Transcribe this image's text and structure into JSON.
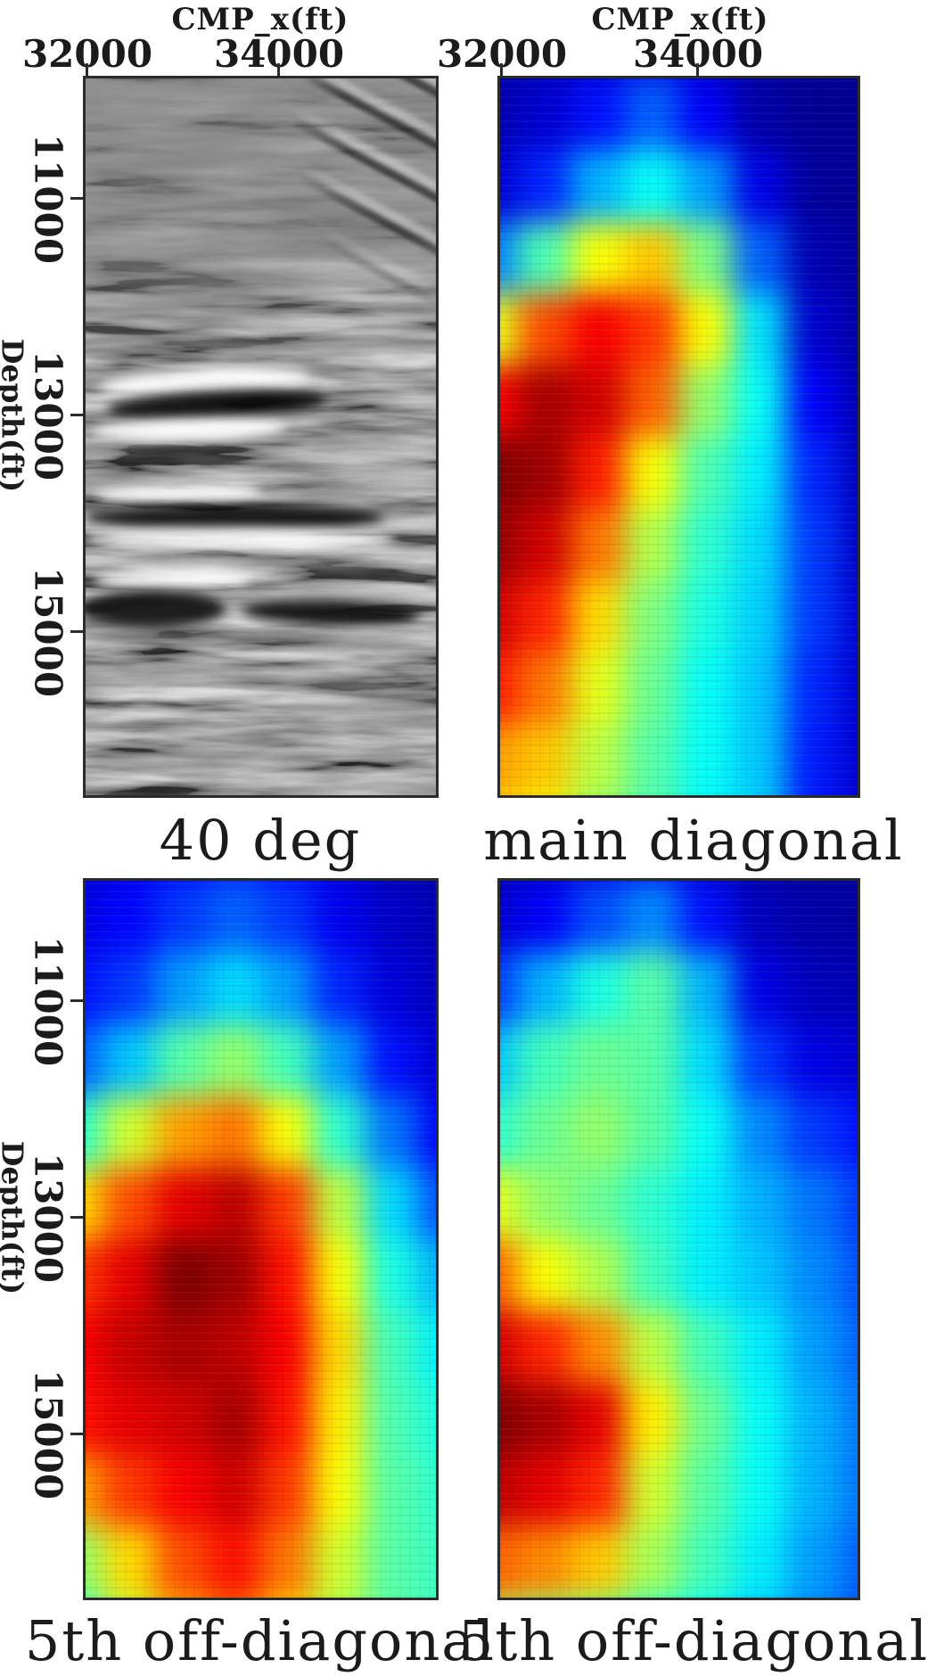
{
  "figure": {
    "background": "#ffffff",
    "text_color": "#1b1b1b",
    "axis_color": "#2b2b2b",
    "x_axis": {
      "title": "CMP_x(ft)",
      "ticks": [
        "32000",
        "34000"
      ]
    },
    "y_axis": {
      "title": "Depth(ft)",
      "ticks": [
        "11000",
        "13000",
        "15000"
      ]
    },
    "captions": {
      "top_left": "40 deg",
      "top_right": "main diagonal",
      "bottom_left": "5th off-diagonal",
      "bottom_right": "5th off-diagonal"
    }
  },
  "chart_data": [
    {
      "id": "deg40",
      "type": "heatmap",
      "subtype": "seismic-image",
      "colormap": "gray",
      "caption": "40 deg",
      "xlabel": "CMP_x(ft)",
      "ylabel": "Depth(ft)",
      "x_ticks": [
        32000,
        34000
      ],
      "y_ticks": [
        11000,
        13000,
        15000
      ],
      "description": "Grayscale migrated seismic depth section for the 40 degree angle: faint subhorizontal wavy reflectors in the upper third, strong dipping black/white events near 13000 ft (left-center), strong continuous black/white banding around 14500-15500 ft with heavy black amplitudes at the lower left, and steep dipping noise streaks in the upper-right corner."
    },
    {
      "id": "main_diagonal",
      "type": "heatmap",
      "colormap": "jet",
      "caption": "main diagonal",
      "xlabel": "CMP_x(ft)",
      "ylabel": "Depth(ft)",
      "x_ticks": [
        32000,
        34000
      ],
      "y_ticks": [
        11000,
        13000,
        15000
      ],
      "value_range": [
        0,
        1
      ],
      "grid": [
        [
          0.04,
          0.05,
          0.07,
          0.09,
          0.06,
          0.03,
          0.02,
          0.02
        ],
        [
          0.05,
          0.08,
          0.14,
          0.22,
          0.12,
          0.04,
          0.02,
          0.02
        ],
        [
          0.08,
          0.16,
          0.3,
          0.38,
          0.28,
          0.1,
          0.03,
          0.02
        ],
        [
          0.25,
          0.45,
          0.62,
          0.68,
          0.5,
          0.22,
          0.05,
          0.03
        ],
        [
          0.6,
          0.8,
          0.88,
          0.82,
          0.62,
          0.35,
          0.08,
          0.04
        ],
        [
          0.88,
          0.96,
          0.92,
          0.78,
          0.52,
          0.38,
          0.12,
          0.05
        ],
        [
          1.0,
          0.97,
          0.85,
          0.62,
          0.45,
          0.36,
          0.16,
          0.06
        ],
        [
          0.98,
          0.92,
          0.76,
          0.55,
          0.42,
          0.34,
          0.18,
          0.07
        ],
        [
          0.92,
          0.84,
          0.66,
          0.5,
          0.4,
          0.33,
          0.18,
          0.08
        ],
        [
          0.85,
          0.76,
          0.6,
          0.48,
          0.38,
          0.32,
          0.16,
          0.08
        ],
        [
          0.72,
          0.68,
          0.56,
          0.46,
          0.38,
          0.32,
          0.15,
          0.08
        ],
        [
          0.66,
          0.62,
          0.52,
          0.45,
          0.38,
          0.33,
          0.15,
          0.08
        ]
      ]
    },
    {
      "id": "offdiag5_left",
      "type": "heatmap",
      "colormap": "jet",
      "caption": "5th off-diagonal",
      "xlabel": "CMP_x(ft)",
      "ylabel": "Depth(ft)",
      "x_ticks": [
        32000,
        34000
      ],
      "y_ticks": [
        11000,
        13000,
        15000
      ],
      "value_range": [
        0,
        1
      ],
      "grid": [
        [
          0.08,
          0.1,
          0.13,
          0.15,
          0.13,
          0.09,
          0.05,
          0.04
        ],
        [
          0.1,
          0.13,
          0.18,
          0.22,
          0.18,
          0.11,
          0.07,
          0.05
        ],
        [
          0.14,
          0.18,
          0.28,
          0.34,
          0.28,
          0.16,
          0.09,
          0.06
        ],
        [
          0.22,
          0.32,
          0.46,
          0.52,
          0.44,
          0.28,
          0.14,
          0.08
        ],
        [
          0.42,
          0.58,
          0.72,
          0.76,
          0.62,
          0.42,
          0.24,
          0.12
        ],
        [
          0.66,
          0.8,
          0.9,
          0.94,
          0.82,
          0.56,
          0.34,
          0.2
        ],
        [
          0.82,
          0.9,
          1.0,
          0.97,
          0.86,
          0.62,
          0.4,
          0.3
        ],
        [
          0.88,
          0.93,
          0.96,
          0.94,
          0.88,
          0.66,
          0.44,
          0.36
        ],
        [
          0.86,
          0.9,
          0.92,
          0.96,
          0.86,
          0.64,
          0.45,
          0.4
        ],
        [
          0.72,
          0.82,
          0.88,
          0.92,
          0.82,
          0.62,
          0.46,
          0.42
        ],
        [
          0.52,
          0.66,
          0.8,
          0.86,
          0.76,
          0.58,
          0.46,
          0.43
        ],
        [
          0.42,
          0.56,
          0.7,
          0.76,
          0.66,
          0.54,
          0.46,
          0.44
        ]
      ]
    },
    {
      "id": "offdiag5_right",
      "type": "heatmap",
      "colormap": "jet",
      "caption": "5th off-diagonal",
      "xlabel": "CMP_x(ft)",
      "ylabel": "Depth(ft)",
      "x_ticks": [
        32000,
        34000
      ],
      "y_ticks": [
        11000,
        13000,
        15000
      ],
      "value_range": [
        0,
        1
      ],
      "grid": [
        [
          0.05,
          0.07,
          0.09,
          0.11,
          0.07,
          0.04,
          0.03,
          0.03
        ],
        [
          0.08,
          0.12,
          0.2,
          0.26,
          0.14,
          0.06,
          0.04,
          0.03
        ],
        [
          0.18,
          0.3,
          0.4,
          0.46,
          0.3,
          0.1,
          0.06,
          0.05
        ],
        [
          0.32,
          0.44,
          0.48,
          0.46,
          0.34,
          0.18,
          0.1,
          0.08
        ],
        [
          0.42,
          0.48,
          0.52,
          0.46,
          0.38,
          0.26,
          0.18,
          0.14
        ],
        [
          0.6,
          0.52,
          0.48,
          0.42,
          0.36,
          0.3,
          0.24,
          0.18
        ],
        [
          0.78,
          0.62,
          0.55,
          0.44,
          0.36,
          0.32,
          0.26,
          0.2
        ],
        [
          0.92,
          0.84,
          0.74,
          0.56,
          0.44,
          0.36,
          0.28,
          0.22
        ],
        [
          1.0,
          0.96,
          0.9,
          0.64,
          0.48,
          0.38,
          0.3,
          0.24
        ],
        [
          0.94,
          0.9,
          0.84,
          0.58,
          0.46,
          0.38,
          0.3,
          0.24
        ],
        [
          0.78,
          0.74,
          0.68,
          0.54,
          0.44,
          0.36,
          0.28,
          0.22
        ],
        [
          0.54,
          0.5,
          0.48,
          0.42,
          0.38,
          0.32,
          0.26,
          0.2
        ]
      ]
    }
  ]
}
